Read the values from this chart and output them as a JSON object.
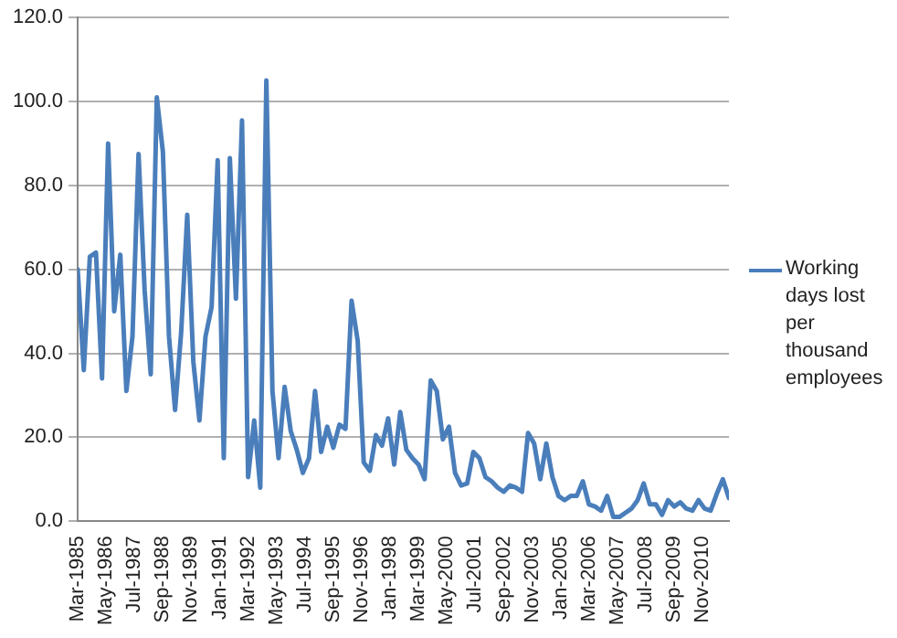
{
  "chart_data": {
    "type": "line",
    "x": [
      "1985-03",
      "1985-06",
      "1985-09",
      "1985-12",
      "1986-03",
      "1986-06",
      "1986-09",
      "1986-12",
      "1987-03",
      "1987-06",
      "1987-09",
      "1987-12",
      "1988-03",
      "1988-06",
      "1988-09",
      "1988-12",
      "1989-03",
      "1989-06",
      "1989-09",
      "1989-12",
      "1990-03",
      "1990-06",
      "1990-09",
      "1990-12",
      "1991-03",
      "1991-06",
      "1991-09",
      "1991-12",
      "1992-03",
      "1992-06",
      "1992-09",
      "1992-12",
      "1993-03",
      "1993-06",
      "1993-09",
      "1993-12",
      "1994-03",
      "1994-06",
      "1994-09",
      "1994-12",
      "1995-03",
      "1995-06",
      "1995-09",
      "1995-12",
      "1996-03",
      "1996-06",
      "1996-09",
      "1996-12",
      "1997-03",
      "1997-06",
      "1997-09",
      "1997-12",
      "1998-03",
      "1998-06",
      "1998-09",
      "1998-12",
      "1999-03",
      "1999-06",
      "1999-09",
      "1999-12",
      "2000-03",
      "2000-06",
      "2000-09",
      "2000-12",
      "2001-03",
      "2001-06",
      "2001-09",
      "2001-12",
      "2002-03",
      "2002-06",
      "2002-09",
      "2002-12",
      "2003-03",
      "2003-06",
      "2003-09",
      "2003-12",
      "2004-03",
      "2004-06",
      "2004-09",
      "2004-12",
      "2005-03",
      "2005-06",
      "2005-09",
      "2005-12",
      "2006-03",
      "2006-06",
      "2006-09",
      "2006-12",
      "2007-03",
      "2007-06",
      "2007-09",
      "2007-12",
      "2008-03",
      "2008-06",
      "2008-09",
      "2008-12",
      "2009-03",
      "2009-06",
      "2009-09",
      "2009-12",
      "2010-03",
      "2010-06",
      "2010-09",
      "2010-12",
      "2011-03",
      "2011-06",
      "2011-09",
      "2011-12"
    ],
    "series": [
      {
        "name": "Working days lost per thousand employees",
        "color": "#4a7ebb",
        "values": [
          60,
          36,
          63,
          64,
          34,
          90,
          50,
          63.5,
          31,
          44,
          87.5,
          55,
          35,
          101,
          88,
          44,
          26.5,
          45,
          73,
          38,
          24,
          44,
          51,
          86,
          15,
          86.5,
          53,
          95.5,
          10.5,
          24,
          8,
          105,
          31,
          15,
          32,
          21.5,
          17,
          11.5,
          15,
          31,
          16.5,
          22.5,
          17.5,
          23,
          22,
          52.5,
          43,
          14,
          12,
          20.5,
          18,
          24.5,
          13.5,
          26,
          17,
          15,
          13.5,
          10,
          33.5,
          31,
          19.5,
          22.5,
          11.5,
          8.5,
          9,
          16.5,
          15,
          10.5,
          9.5,
          8,
          7,
          8.5,
          8,
          7,
          21,
          18.5,
          10,
          18.5,
          10.5,
          6,
          5,
          6,
          6,
          9.5,
          4,
          3.5,
          2.5,
          6,
          1,
          1,
          2,
          3,
          5,
          9,
          4,
          4,
          1.5,
          5,
          3.5,
          4.5,
          3,
          2.5,
          5,
          3,
          2.5,
          6.5,
          10,
          5.5
        ]
      }
    ],
    "xlim": [
      "1985-03",
      "2011-12"
    ],
    "xticks": [
      {
        "value": "1985-03",
        "label": "Mar-1985"
      },
      {
        "value": "1986-05",
        "label": "May-1986"
      },
      {
        "value": "1987-07",
        "label": "Jul-1987"
      },
      {
        "value": "1988-09",
        "label": "Sep-1988"
      },
      {
        "value": "1989-11",
        "label": "Nov-1989"
      },
      {
        "value": "1991-01",
        "label": "Jan-1991"
      },
      {
        "value": "1992-03",
        "label": "Mar-1992"
      },
      {
        "value": "1993-05",
        "label": "May-1993"
      },
      {
        "value": "1994-07",
        "label": "Jul-1994"
      },
      {
        "value": "1995-09",
        "label": "Sep-1995"
      },
      {
        "value": "1996-11",
        "label": "Nov-1996"
      },
      {
        "value": "1998-01",
        "label": "Jan-1998"
      },
      {
        "value": "1999-03",
        "label": "Mar-1999"
      },
      {
        "value": "2000-05",
        "label": "May-2000"
      },
      {
        "value": "2001-07",
        "label": "Jul-2001"
      },
      {
        "value": "2002-09",
        "label": "Sep-2002"
      },
      {
        "value": "2003-11",
        "label": "Nov-2003"
      },
      {
        "value": "2005-01",
        "label": "Jan-2005"
      },
      {
        "value": "2006-03",
        "label": "Mar-2006"
      },
      {
        "value": "2007-05",
        "label": "May-2007"
      },
      {
        "value": "2008-07",
        "label": "Jul-2008"
      },
      {
        "value": "2009-09",
        "label": "Sep-2009"
      },
      {
        "value": "2010-11",
        "label": "Nov-2010"
      }
    ],
    "ylim": [
      0,
      120
    ],
    "yticks": [
      {
        "value": 0,
        "label": "0.0"
      },
      {
        "value": 20,
        "label": "20.0"
      },
      {
        "value": 40,
        "label": "40.0"
      },
      {
        "value": 60,
        "label": "60.0"
      },
      {
        "value": 80,
        "label": "80.0"
      },
      {
        "value": 100,
        "label": "100.0"
      },
      {
        "value": 120,
        "label": "120.0"
      }
    ],
    "grid": "y",
    "legend": "right",
    "marker": "none",
    "line_style": "solid"
  }
}
